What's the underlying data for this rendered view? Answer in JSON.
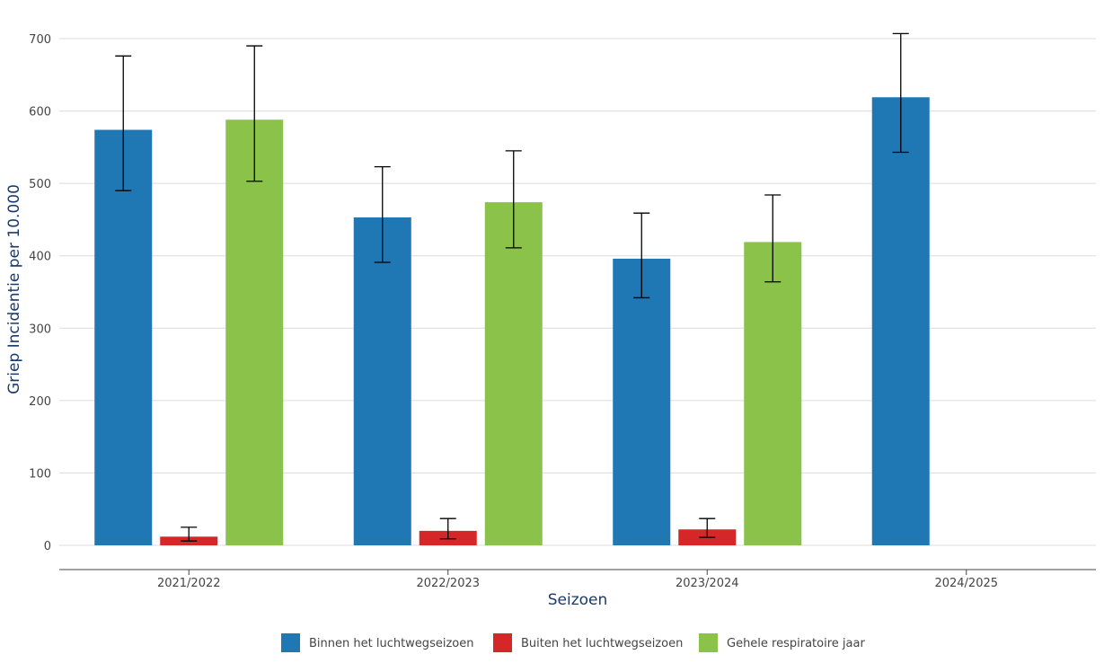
{
  "chart_data": {
    "type": "bar",
    "title": "",
    "xlabel": "Seizoen",
    "ylabel": "Griep Incidentie per 10.000",
    "ylim": [
      0,
      700
    ],
    "yticks": [
      0,
      100,
      200,
      300,
      400,
      500,
      600,
      700
    ],
    "grid": true,
    "legend_position": "bottom",
    "categories": [
      "2021/2022",
      "2022/2023",
      "2023/2024",
      "2024/2025"
    ],
    "series": [
      {
        "name": "Binnen het luchtwegseizoen",
        "color": "#1f77b4",
        "values": [
          574,
          453,
          396,
          619
        ],
        "error_low": [
          490,
          391,
          342,
          543
        ],
        "error_high": [
          676,
          523,
          459,
          707
        ]
      },
      {
        "name": "Buiten het luchtwegseizoen",
        "color": "#d62728",
        "values": [
          12,
          20,
          22,
          null
        ],
        "error_low": [
          6,
          9,
          11,
          null
        ],
        "error_high": [
          25,
          37,
          37,
          null
        ]
      },
      {
        "name": "Gehele respiratoire jaar",
        "color": "#8bc24a",
        "values": [
          588,
          474,
          419,
          null
        ],
        "error_low": [
          503,
          411,
          364,
          null
        ],
        "error_high": [
          690,
          545,
          484,
          null
        ]
      }
    ]
  }
}
